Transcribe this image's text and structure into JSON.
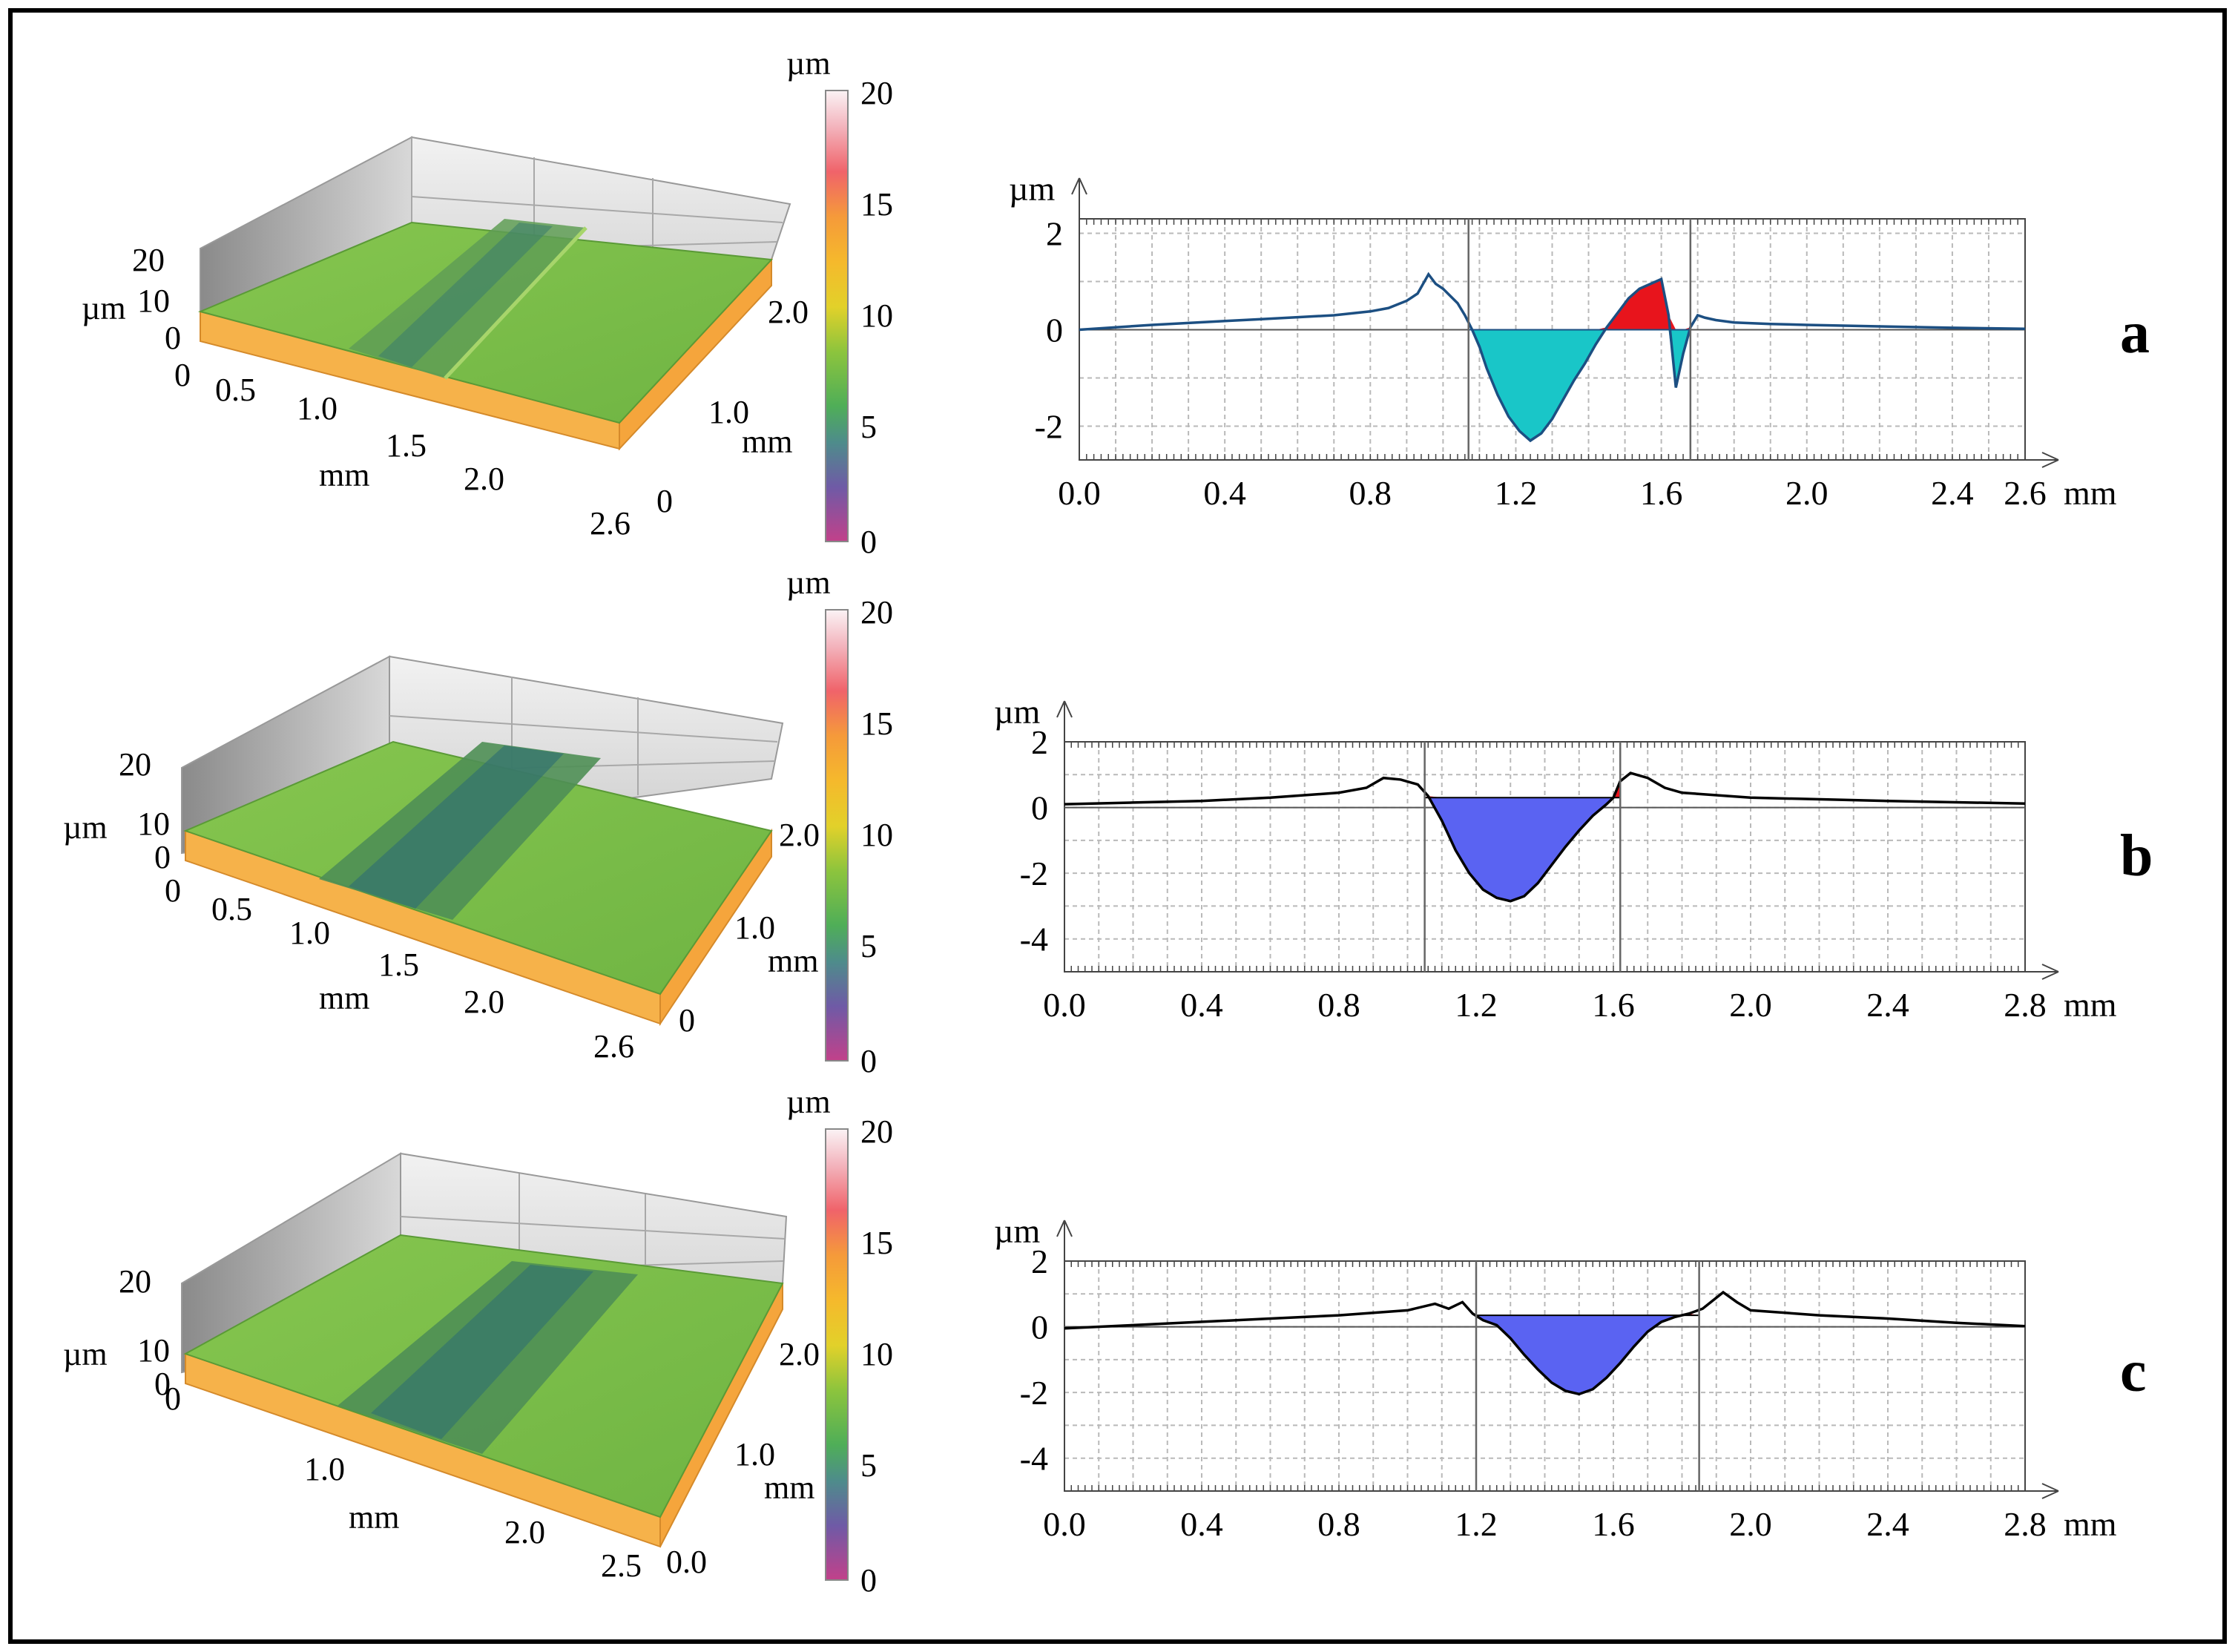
{
  "panels": [
    {
      "id": "a",
      "letter": "a",
      "surface": {
        "z_axis_label": "µm",
        "z_ticks": [
          "0",
          "10",
          "20"
        ],
        "x_axis_label": "mm",
        "x_ticks": [
          "0",
          "0.5",
          "1.0",
          "1.5",
          "2.0",
          "2.6"
        ],
        "y_axis_label": "mm",
        "y_ticks": [
          "0",
          "1.0",
          "2.0"
        ]
      },
      "colorbar": {
        "unit": "µm",
        "ticks": [
          "0",
          "5",
          "10",
          "15",
          "20"
        ]
      }
    },
    {
      "id": "b",
      "letter": "b",
      "surface": {
        "z_axis_label": "µm",
        "z_ticks": [
          "0",
          "10",
          "20"
        ],
        "x_axis_label": "mm",
        "x_ticks": [
          "0",
          "0.5",
          "1.0",
          "1.5",
          "2.0",
          "2.6"
        ],
        "y_axis_label": "mm",
        "y_ticks": [
          "0",
          "1.0",
          "2.0"
        ]
      },
      "colorbar": {
        "unit": "µm",
        "ticks": [
          "0",
          "5",
          "10",
          "15",
          "20"
        ]
      }
    },
    {
      "id": "c",
      "letter": "c",
      "surface": {
        "z_axis_label": "µm",
        "z_ticks": [
          "0",
          "10",
          "20"
        ],
        "x_axis_label": "mm",
        "x_ticks": [
          "0",
          "1.0",
          "2.0",
          "2.5"
        ],
        "y_axis_label": "mm",
        "y_ticks": [
          "0.0",
          "1.0",
          "2.0"
        ]
      },
      "colorbar": {
        "unit": "µm",
        "ticks": [
          "0",
          "5",
          "10",
          "15",
          "20"
        ]
      }
    }
  ],
  "colors": {
    "profile_line_a": "#1c4f82",
    "profile_line_bc": "#000000",
    "valley_fill_a": "#19c6c8",
    "valley_fill_bc": "#5a63f2",
    "pileup_fill": "#e8141c",
    "surface_green": "#7cc24a",
    "surface_side": "#f6b24a",
    "grid": "#b9b9b9"
  },
  "chart_data": [
    {
      "id": "a",
      "type": "area",
      "xlabel": "mm",
      "ylabel": "µm",
      "xlim": [
        0,
        2.6
      ],
      "ylim": [
        -2.7,
        2.3
      ],
      "x_ticks": [
        0.0,
        0.4,
        0.8,
        1.2,
        1.6,
        2.0,
        2.4,
        2.6
      ],
      "x_tick_labels": [
        "0.0",
        "0.4",
        "0.8",
        "1.2",
        "1.6",
        "2.0",
        "2.4",
        "2.6"
      ],
      "y_ticks": [
        -2,
        0,
        2
      ],
      "y_tick_labels": [
        "-2",
        "0",
        "2"
      ],
      "grid": true,
      "vertical_markers": [
        1.07,
        1.68
      ],
      "baseline": 0.0,
      "profile": {
        "x": [
          0.0,
          0.1,
          0.2,
          0.3,
          0.4,
          0.5,
          0.6,
          0.7,
          0.8,
          0.85,
          0.9,
          0.93,
          0.96,
          0.98,
          1.0,
          1.02,
          1.04,
          1.06,
          1.08,
          1.1,
          1.12,
          1.15,
          1.18,
          1.21,
          1.24,
          1.27,
          1.3,
          1.33,
          1.36,
          1.39,
          1.42,
          1.45,
          1.48,
          1.51,
          1.54,
          1.57,
          1.6,
          1.62,
          1.64,
          1.66,
          1.68,
          1.7,
          1.72,
          1.75,
          1.8,
          1.9,
          2.0,
          2.2,
          2.4,
          2.6
        ],
        "y": [
          0.0,
          0.05,
          0.1,
          0.14,
          0.18,
          0.22,
          0.26,
          0.3,
          0.38,
          0.45,
          0.6,
          0.75,
          1.15,
          0.95,
          0.85,
          0.7,
          0.55,
          0.3,
          0.0,
          -0.35,
          -0.8,
          -1.35,
          -1.8,
          -2.1,
          -2.3,
          -2.15,
          -1.85,
          -1.45,
          -1.05,
          -0.7,
          -0.3,
          0.05,
          0.35,
          0.65,
          0.85,
          0.95,
          1.05,
          0.3,
          -1.2,
          -0.5,
          0.05,
          0.3,
          0.25,
          0.2,
          0.15,
          0.12,
          0.1,
          0.07,
          0.04,
          0.02
        ]
      }
    },
    {
      "id": "b",
      "type": "area",
      "xlabel": "mm",
      "ylabel": "µm",
      "xlim": [
        0,
        2.8
      ],
      "ylim": [
        -5.0,
        2.0
      ],
      "x_ticks": [
        0.0,
        0.4,
        0.8,
        1.2,
        1.6,
        2.0,
        2.4,
        2.8
      ],
      "x_tick_labels": [
        "0.0",
        "0.4",
        "0.8",
        "1.2",
        "1.6",
        "2.0",
        "2.4",
        "2.8"
      ],
      "y_ticks": [
        -4,
        -2,
        0,
        2
      ],
      "y_tick_labels": [
        "-4",
        "-2",
        "0",
        "2"
      ],
      "grid": true,
      "vertical_markers": [
        1.05,
        1.62
      ],
      "baseline": 0.3,
      "profile": {
        "x": [
          0.0,
          0.2,
          0.4,
          0.6,
          0.8,
          0.88,
          0.93,
          0.98,
          1.03,
          1.06,
          1.1,
          1.14,
          1.18,
          1.22,
          1.26,
          1.3,
          1.34,
          1.38,
          1.42,
          1.46,
          1.5,
          1.54,
          1.58,
          1.6,
          1.62,
          1.65,
          1.7,
          1.75,
          1.8,
          2.0,
          2.4,
          2.8
        ],
        "y": [
          0.1,
          0.15,
          0.2,
          0.3,
          0.45,
          0.6,
          0.9,
          0.85,
          0.7,
          0.35,
          -0.4,
          -1.3,
          -2.0,
          -2.5,
          -2.75,
          -2.85,
          -2.7,
          -2.3,
          -1.75,
          -1.2,
          -0.7,
          -0.25,
          0.1,
          0.3,
          0.8,
          1.05,
          0.9,
          0.6,
          0.45,
          0.3,
          0.2,
          0.12
        ]
      }
    },
    {
      "id": "c",
      "type": "area",
      "xlabel": "mm",
      "ylabel": "µm",
      "xlim": [
        0,
        2.8
      ],
      "ylim": [
        -5.0,
        2.0
      ],
      "x_ticks": [
        0.0,
        0.4,
        0.8,
        1.2,
        1.6,
        2.0,
        2.4,
        2.8
      ],
      "x_tick_labels": [
        "0.0",
        "0.4",
        "0.8",
        "1.2",
        "1.6",
        "2.0",
        "2.4",
        "2.8"
      ],
      "y_ticks": [
        -4,
        -2,
        0,
        2
      ],
      "y_tick_labels": [
        "-4",
        "-2",
        "0",
        "2"
      ],
      "grid": true,
      "vertical_markers": [
        1.2,
        1.85
      ],
      "baseline": 0.35,
      "profile": {
        "x": [
          0.0,
          0.2,
          0.4,
          0.6,
          0.8,
          1.0,
          1.08,
          1.12,
          1.16,
          1.19,
          1.22,
          1.26,
          1.3,
          1.34,
          1.38,
          1.42,
          1.46,
          1.5,
          1.54,
          1.58,
          1.62,
          1.66,
          1.7,
          1.74,
          1.78,
          1.82,
          1.86,
          1.92,
          1.96,
          2.0,
          2.2,
          2.4,
          2.6,
          2.8
        ],
        "y": [
          -0.05,
          0.05,
          0.15,
          0.25,
          0.35,
          0.5,
          0.7,
          0.55,
          0.75,
          0.4,
          0.2,
          0.05,
          -0.35,
          -0.85,
          -1.3,
          -1.7,
          -1.95,
          -2.05,
          -1.9,
          -1.55,
          -1.1,
          -0.6,
          -0.15,
          0.15,
          0.3,
          0.4,
          0.55,
          1.05,
          0.75,
          0.5,
          0.35,
          0.25,
          0.12,
          0.02
        ]
      }
    }
  ]
}
